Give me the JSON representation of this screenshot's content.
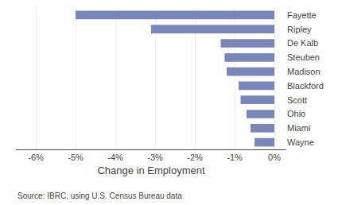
{
  "chart_data": {
    "type": "bar",
    "orientation": "horizontal",
    "categories": [
      "Fayette",
      "Ripley",
      "De Kalb",
      "Steuben",
      "Madison",
      "Blackford",
      "Scott",
      "Ohio",
      "Miami",
      "Wayne"
    ],
    "values": [
      -5.0,
      -3.1,
      -1.35,
      -1.25,
      -1.2,
      -0.9,
      -0.85,
      -0.7,
      -0.6,
      -0.5
    ],
    "color": "#7b86b8",
    "xlabel": "Change in Employment",
    "xlim": [
      -6.5,
      0.3
    ],
    "xticks": [
      {
        "value": -6,
        "label": "-6%"
      },
      {
        "value": -5,
        "label": "-5%"
      },
      {
        "value": -4,
        "label": "-4%"
      },
      {
        "value": -3,
        "label": "-3%"
      },
      {
        "value": -2,
        "label": "-2%"
      },
      {
        "value": -1,
        "label": "-1%"
      },
      {
        "value": 0,
        "label": "0%"
      }
    ],
    "grid": true,
    "annotations": [
      "Source: IBRC, using U.S. Census Bureau data"
    ]
  }
}
